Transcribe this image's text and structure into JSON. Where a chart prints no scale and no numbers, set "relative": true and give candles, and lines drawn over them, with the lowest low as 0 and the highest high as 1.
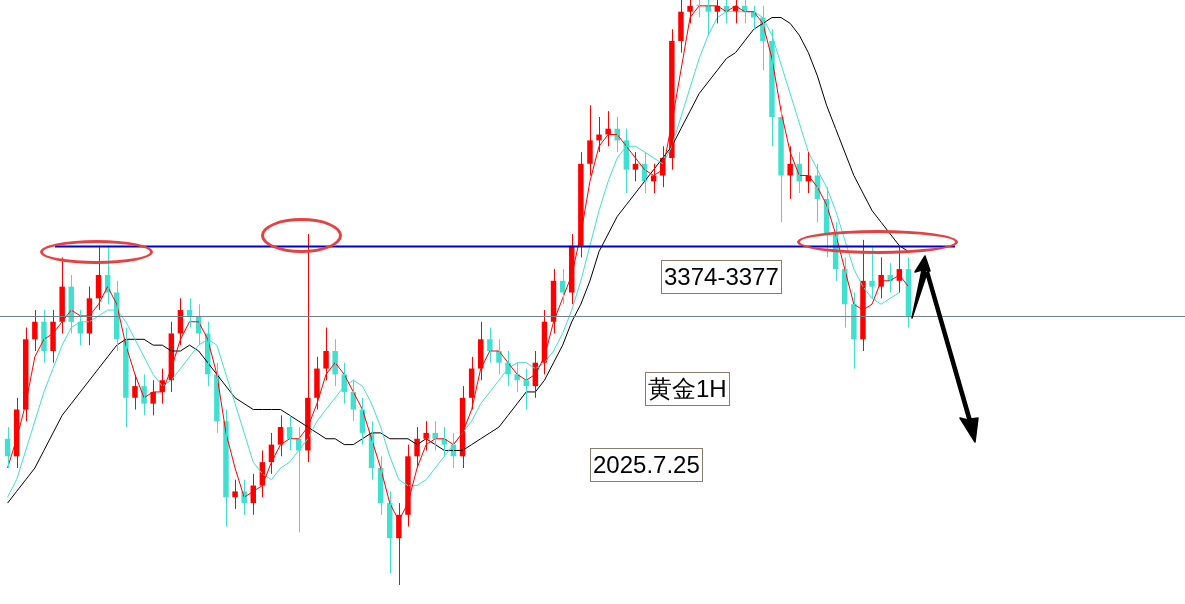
{
  "chart_data": {
    "type": "candlestick",
    "relative": true,
    "tick_labels": false,
    "categories": [
      null,
      null,
      null,
      null,
      null,
      null,
      null,
      null,
      null,
      null,
      null,
      null,
      null,
      null,
      null,
      null,
      null,
      null,
      null,
      null,
      null,
      null,
      null,
      null,
      null,
      null,
      null,
      null,
      null,
      null,
      null,
      null,
      null,
      null,
      null,
      null,
      null,
      null,
      null,
      null,
      null,
      null,
      null,
      null,
      null,
      null,
      null,
      null,
      null,
      null,
      null,
      null,
      null,
      null,
      null,
      null,
      null,
      null,
      null,
      null,
      null,
      null,
      null,
      null,
      null,
      null,
      null,
      null,
      null,
      null,
      null,
      null,
      null,
      null,
      null,
      null,
      null,
      null,
      null,
      null,
      null,
      null,
      null,
      null,
      null,
      null,
      null,
      null,
      null,
      null,
      null,
      null,
      null,
      null,
      null,
      null,
      null,
      null,
      null,
      null
    ],
    "ohlc": [
      [
        0.25,
        0.27,
        0.2,
        0.22
      ],
      [
        0.22,
        0.32,
        0.2,
        0.3
      ],
      [
        0.3,
        0.44,
        0.28,
        0.42
      ],
      [
        0.42,
        0.47,
        0.4,
        0.45
      ],
      [
        0.45,
        0.47,
        0.38,
        0.4
      ],
      [
        0.4,
        0.47,
        0.38,
        0.45
      ],
      [
        0.45,
        0.56,
        0.43,
        0.51
      ],
      [
        0.51,
        0.53,
        0.43,
        0.45
      ],
      [
        0.45,
        0.47,
        0.41,
        0.43
      ],
      [
        0.43,
        0.51,
        0.41,
        0.49
      ],
      [
        0.49,
        0.58,
        0.47,
        0.53
      ],
      [
        0.53,
        0.58,
        0.48,
        0.5
      ],
      [
        0.5,
        0.52,
        0.4,
        0.42
      ],
      [
        0.42,
        0.44,
        0.27,
        0.32
      ],
      [
        0.32,
        0.36,
        0.3,
        0.34
      ],
      [
        0.34,
        0.36,
        0.29,
        0.31
      ],
      [
        0.31,
        0.35,
        0.29,
        0.33
      ],
      [
        0.33,
        0.37,
        0.31,
        0.35
      ],
      [
        0.35,
        0.45,
        0.33,
        0.43
      ],
      [
        0.43,
        0.49,
        0.41,
        0.47
      ],
      [
        0.47,
        0.49,
        0.44,
        0.46
      ],
      [
        0.46,
        0.48,
        0.41,
        0.43
      ],
      [
        0.43,
        0.45,
        0.34,
        0.36
      ],
      [
        0.36,
        0.38,
        0.26,
        0.28
      ],
      [
        0.28,
        0.3,
        0.1,
        0.15
      ],
      [
        0.15,
        0.18,
        0.13,
        0.16
      ],
      [
        0.16,
        0.18,
        0.12,
        0.14
      ],
      [
        0.14,
        0.19,
        0.12,
        0.17
      ],
      [
        0.17,
        0.23,
        0.15,
        0.21
      ],
      [
        0.21,
        0.26,
        0.19,
        0.24
      ],
      [
        0.24,
        0.29,
        0.22,
        0.27
      ],
      [
        0.27,
        0.29,
        0.23,
        0.25
      ],
      [
        0.25,
        0.27,
        0.09,
        0.23
      ],
      [
        0.23,
        0.6,
        0.21,
        0.32
      ],
      [
        0.32,
        0.39,
        0.3,
        0.37
      ],
      [
        0.37,
        0.44,
        0.35,
        0.4
      ],
      [
        0.4,
        0.42,
        0.34,
        0.36
      ],
      [
        0.36,
        0.38,
        0.31,
        0.33
      ],
      [
        0.33,
        0.35,
        0.28,
        0.3
      ],
      [
        0.3,
        0.32,
        0.24,
        0.26
      ],
      [
        0.26,
        0.28,
        0.18,
        0.2
      ],
      [
        0.2,
        0.22,
        0.12,
        0.14
      ],
      [
        0.14,
        0.16,
        0.02,
        0.08
      ],
      [
        0.08,
        0.14,
        0.0,
        0.12
      ],
      [
        0.12,
        0.24,
        0.1,
        0.22
      ],
      [
        0.22,
        0.27,
        0.2,
        0.25
      ],
      [
        0.25,
        0.28,
        0.23,
        0.26
      ],
      [
        0.26,
        0.28,
        0.23,
        0.25
      ],
      [
        0.25,
        0.27,
        0.22,
        0.24
      ],
      [
        0.24,
        0.26,
        0.2,
        0.22
      ],
      [
        0.22,
        0.34,
        0.2,
        0.32
      ],
      [
        0.32,
        0.39,
        0.3,
        0.37
      ],
      [
        0.37,
        0.45,
        0.35,
        0.42
      ],
      [
        0.42,
        0.44,
        0.38,
        0.4
      ],
      [
        0.4,
        0.42,
        0.36,
        0.38
      ],
      [
        0.38,
        0.4,
        0.34,
        0.36
      ],
      [
        0.36,
        0.38,
        0.33,
        0.35
      ],
      [
        0.35,
        0.37,
        0.3,
        0.34
      ],
      [
        0.34,
        0.4,
        0.32,
        0.38
      ],
      [
        0.38,
        0.47,
        0.36,
        0.45
      ],
      [
        0.45,
        0.54,
        0.43,
        0.52
      ],
      [
        0.52,
        0.54,
        0.48,
        0.5
      ],
      [
        0.5,
        0.6,
        0.48,
        0.58
      ],
      [
        0.58,
        0.74,
        0.56,
        0.72
      ],
      [
        0.72,
        0.82,
        0.7,
        0.76
      ],
      [
        0.76,
        0.8,
        0.74,
        0.77
      ],
      [
        0.77,
        0.81,
        0.75,
        0.78
      ],
      [
        0.78,
        0.8,
        0.74,
        0.76
      ],
      [
        0.76,
        0.78,
        0.67,
        0.71
      ],
      [
        0.71,
        0.74,
        0.69,
        0.72
      ],
      [
        0.72,
        0.74,
        0.67,
        0.69
      ],
      [
        0.69,
        0.72,
        0.67,
        0.7
      ],
      [
        0.7,
        0.75,
        0.68,
        0.73
      ],
      [
        0.73,
        0.95,
        0.71,
        0.93
      ],
      [
        0.93,
        1.0,
        0.91,
        0.98
      ],
      [
        0.98,
        1.0,
        0.96,
        0.99
      ],
      [
        0.99,
        1.0,
        0.97,
        0.99
      ],
      [
        0.99,
        1.0,
        0.94,
        0.98
      ],
      [
        0.98,
        1.0,
        0.96,
        0.99
      ],
      [
        0.99,
        1.0,
        0.96,
        0.98
      ],
      [
        0.98,
        1.0,
        0.96,
        0.99
      ],
      [
        0.99,
        1.0,
        0.96,
        0.98
      ],
      [
        0.98,
        0.99,
        0.95,
        0.97
      ],
      [
        0.97,
        0.99,
        0.88,
        0.93
      ],
      [
        0.93,
        0.95,
        0.75,
        0.8
      ],
      [
        0.8,
        0.82,
        0.62,
        0.7
      ],
      [
        0.7,
        0.75,
        0.66,
        0.72
      ],
      [
        0.72,
        0.74,
        0.67,
        0.69
      ],
      [
        0.69,
        0.74,
        0.67,
        0.7
      ],
      [
        0.7,
        0.72,
        0.62,
        0.66
      ],
      [
        0.66,
        0.68,
        0.56,
        0.6
      ],
      [
        0.6,
        0.62,
        0.52,
        0.54
      ],
      [
        0.54,
        0.56,
        0.44,
        0.48
      ],
      [
        0.48,
        0.5,
        0.37,
        0.42
      ],
      [
        0.42,
        0.59,
        0.4,
        0.52
      ],
      [
        0.52,
        0.58,
        0.49,
        0.51
      ],
      [
        0.51,
        0.56,
        0.49,
        0.53
      ],
      [
        0.53,
        0.55,
        0.5,
        0.52
      ],
      [
        0.52,
        0.58,
        0.5,
        0.54
      ],
      [
        0.54,
        0.56,
        0.44,
        0.46
      ]
    ],
    "colors": [
      "#40e0d0",
      "#ff0000",
      "#ff0000",
      "#ff0000",
      "#40e0d0",
      "#ff0000",
      "#ff0000",
      "#40e0d0",
      "#40e0d0",
      "#ff0000",
      "#ff0000",
      "#40e0d0",
      "#40e0d0",
      "#40e0d0",
      "#ff0000",
      "#40e0d0",
      "#ff0000",
      "#ff0000",
      "#ff0000",
      "#ff0000",
      "#40e0d0",
      "#40e0d0",
      "#40e0d0",
      "#40e0d0",
      "#40e0d0",
      "#ff0000",
      "#40e0d0",
      "#ff0000",
      "#ff0000",
      "#ff0000",
      "#ff0000",
      "#40e0d0",
      "#40e0d0",
      "#ff0000",
      "#ff0000",
      "#ff0000",
      "#40e0d0",
      "#40e0d0",
      "#40e0d0",
      "#40e0d0",
      "#40e0d0",
      "#40e0d0",
      "#40e0d0",
      "#ff0000",
      "#ff0000",
      "#ff0000",
      "#ff0000",
      "#40e0d0",
      "#40e0d0",
      "#40e0d0",
      "#ff0000",
      "#ff0000",
      "#ff0000",
      "#40e0d0",
      "#40e0d0",
      "#40e0d0",
      "#40e0d0",
      "#40e0d0",
      "#ff0000",
      "#ff0000",
      "#ff0000",
      "#40e0d0",
      "#ff0000",
      "#ff0000",
      "#ff0000",
      "#ff0000",
      "#ff0000",
      "#40e0d0",
      "#40e0d0",
      "#ff0000",
      "#40e0d0",
      "#ff0000",
      "#ff0000",
      "#ff0000",
      "#ff0000",
      "#ff0000",
      "#40e0d0",
      "#40e0d0",
      "#ff0000",
      "#40e0d0",
      "#ff0000",
      "#40e0d0",
      "#40e0d0",
      "#40e0d0",
      "#40e0d0",
      "#40e0d0",
      "#ff0000",
      "#40e0d0",
      "#ff0000",
      "#40e0d0",
      "#40e0d0",
      "#40e0d0",
      "#40e0d0",
      "#40e0d0",
      "#ff0000",
      "#40e0d0",
      "#ff0000",
      "#40e0d0",
      "#ff0000",
      "#40e0d0"
    ],
    "series": [
      {
        "type": "line",
        "color": "#ff0000",
        "values": [
          0.2,
          0.25,
          0.31,
          0.39,
          0.42,
          0.43,
          0.45,
          0.47,
          0.46,
          0.46,
          0.48,
          0.51,
          0.48,
          0.41,
          0.36,
          0.32,
          0.33,
          0.33,
          0.37,
          0.42,
          0.45,
          0.45,
          0.42,
          0.36,
          0.26,
          0.2,
          0.15,
          0.16,
          0.17,
          0.21,
          0.24,
          0.25,
          0.25,
          0.27,
          0.31,
          0.36,
          0.38,
          0.36,
          0.33,
          0.3,
          0.25,
          0.2,
          0.14,
          0.11,
          0.14,
          0.2,
          0.24,
          0.25,
          0.25,
          0.24,
          0.26,
          0.3,
          0.37,
          0.4,
          0.4,
          0.38,
          0.36,
          0.35,
          0.36,
          0.39,
          0.45,
          0.49,
          0.53,
          0.6,
          0.69,
          0.75,
          0.77,
          0.77,
          0.75,
          0.73,
          0.71,
          0.7,
          0.71,
          0.79,
          0.88,
          0.97,
          0.99,
          0.99,
          0.99,
          0.98,
          0.99,
          0.98,
          0.98,
          0.96,
          0.9,
          0.81,
          0.74,
          0.7,
          0.7,
          0.68,
          0.65,
          0.6,
          0.54,
          0.48,
          0.47,
          0.48,
          0.52,
          0.52,
          0.53,
          0.51
        ]
      },
      {
        "type": "line",
        "color": "#40e0d0",
        "values": [
          0.15,
          0.18,
          0.23,
          0.28,
          0.33,
          0.37,
          0.41,
          0.44,
          0.45,
          0.45,
          0.46,
          0.47,
          0.47,
          0.45,
          0.42,
          0.39,
          0.36,
          0.34,
          0.35,
          0.37,
          0.39,
          0.41,
          0.42,
          0.41,
          0.36,
          0.31,
          0.26,
          0.21,
          0.19,
          0.18,
          0.2,
          0.21,
          0.23,
          0.25,
          0.28,
          0.3,
          0.32,
          0.34,
          0.35,
          0.34,
          0.31,
          0.27,
          0.22,
          0.18,
          0.17,
          0.17,
          0.18,
          0.2,
          0.22,
          0.24,
          0.26,
          0.28,
          0.31,
          0.33,
          0.35,
          0.37,
          0.38,
          0.38,
          0.37,
          0.38,
          0.4,
          0.43,
          0.47,
          0.52,
          0.58,
          0.64,
          0.69,
          0.73,
          0.75,
          0.75,
          0.74,
          0.73,
          0.72,
          0.75,
          0.8,
          0.85,
          0.9,
          0.94,
          0.97,
          0.98,
          0.98,
          0.98,
          0.98,
          0.97,
          0.94,
          0.89,
          0.84,
          0.79,
          0.74,
          0.71,
          0.68,
          0.64,
          0.59,
          0.54,
          0.51,
          0.49,
          0.48,
          0.49,
          0.5,
          null
        ]
      },
      {
        "type": "line",
        "color": "#000000",
        "values": [
          0.14,
          0.16,
          0.18,
          0.2,
          0.23,
          0.26,
          0.29,
          0.31,
          0.33,
          0.35,
          0.37,
          0.39,
          0.41,
          0.42,
          0.42,
          0.42,
          0.41,
          0.41,
          0.4,
          0.4,
          0.41,
          0.4,
          0.38,
          0.36,
          0.34,
          0.32,
          0.31,
          0.3,
          0.3,
          0.3,
          0.3,
          0.29,
          0.28,
          0.27,
          0.26,
          0.25,
          0.25,
          0.24,
          0.24,
          0.25,
          0.26,
          0.26,
          0.25,
          0.25,
          0.25,
          0.24,
          0.25,
          0.24,
          0.23,
          0.23,
          0.23,
          0.24,
          0.25,
          0.26,
          0.27,
          0.29,
          0.31,
          0.33,
          0.33,
          0.35,
          0.38,
          0.41,
          0.45,
          0.48,
          0.52,
          0.57,
          0.6,
          0.63,
          0.65,
          0.67,
          0.69,
          0.71,
          0.73,
          0.75,
          0.78,
          0.81,
          0.84,
          0.86,
          0.88,
          0.9,
          0.91,
          0.93,
          0.95,
          0.96,
          0.97,
          0.97,
          0.96,
          0.94,
          0.91,
          0.87,
          0.82,
          0.78,
          0.74,
          0.7,
          0.67,
          0.64,
          0.62,
          0.6,
          0.58,
          0.57
        ]
      }
    ],
    "ref_lines": [
      {
        "axis": "y",
        "value": 0.58,
        "color": "#0000cc",
        "line_style": "solid"
      },
      {
        "axis": "y",
        "value": 0.46,
        "color": "#708090"
      }
    ],
    "annotations": [
      "3374-3377",
      "黄金1H",
      "2025.7.25"
    ]
  }
}
